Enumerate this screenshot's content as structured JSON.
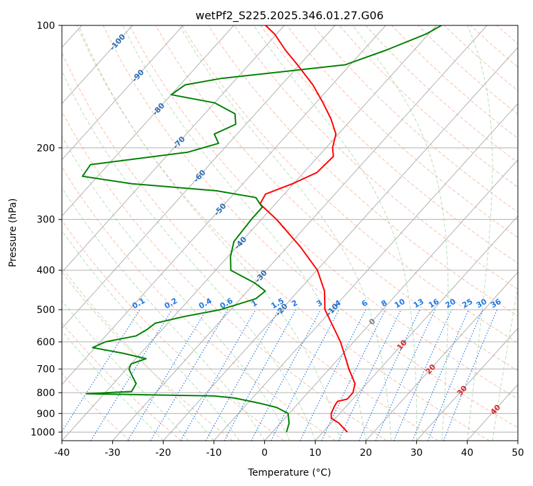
{
  "chart_data": {
    "type": "line",
    "chart_kind": "skew-T log-p diagram",
    "title": "wetPf2_S225.2025.346.01.27.G06",
    "xlabel": "Temperature (°C)",
    "ylabel": "Pressure (hPa)",
    "xlim": [
      -40,
      50
    ],
    "ylim": [
      1050,
      100
    ],
    "y_scale": "log",
    "x_ticks": [
      "-40",
      "-30",
      "-20",
      "-10",
      "0",
      "10",
      "20",
      "30",
      "40",
      "50"
    ],
    "y_ticks": [
      "100",
      "200",
      "300",
      "400",
      "500",
      "600",
      "700",
      "800",
      "900",
      "1000"
    ],
    "grid": "horizontal isobars and skewed isotherms",
    "colors": {
      "temperature": "#ff0000",
      "dewpoint": "#008000",
      "isotherm": "#b0b0b0",
      "dry_adiabat": "#f4a582",
      "moist_adiabat": "#a6d6a6",
      "mixing_ratio": "#1f77e4",
      "isotherm_label": "#2a6db5",
      "zero_label": "#808080",
      "warm_label": "#d62728",
      "lcl_curve": "#d9c3a5"
    },
    "series": [
      {
        "variable": "temperature",
        "points": [
          {
            "p": 1000,
            "t": 14.8
          },
          {
            "p": 950,
            "t": 11.5
          },
          {
            "p": 925,
            "t": 9.2
          },
          {
            "p": 900,
            "t": 8.3
          },
          {
            "p": 860,
            "t": 7.6
          },
          {
            "p": 840,
            "t": 7.4
          },
          {
            "p": 830,
            "t": 8.9
          },
          {
            "p": 800,
            "t": 8.9
          },
          {
            "p": 760,
            "t": 7.7
          },
          {
            "p": 700,
            "t": 3.9
          },
          {
            "p": 650,
            "t": 0.8
          },
          {
            "p": 600,
            "t": -2.6
          },
          {
            "p": 550,
            "t": -6.8
          },
          {
            "p": 500,
            "t": -11.4
          },
          {
            "p": 450,
            "t": -14.8
          },
          {
            "p": 400,
            "t": -19.9
          },
          {
            "p": 350,
            "t": -27.5
          },
          {
            "p": 300,
            "t": -37.0
          },
          {
            "p": 275,
            "t": -43.0
          },
          {
            "p": 260,
            "t": -43.7
          },
          {
            "p": 245,
            "t": -40.2
          },
          {
            "p": 230,
            "t": -37.4
          },
          {
            "p": 210,
            "t": -37.0
          },
          {
            "p": 200,
            "t": -38.7
          },
          {
            "p": 185,
            "t": -40.5
          },
          {
            "p": 170,
            "t": -44.1
          },
          {
            "p": 155,
            "t": -48.6
          },
          {
            "p": 140,
            "t": -53.8
          },
          {
            "p": 125,
            "t": -60.4
          },
          {
            "p": 115,
            "t": -65.4
          },
          {
            "p": 105,
            "t": -70.4
          },
          {
            "p": 100,
            "t": -73.7
          }
        ]
      },
      {
        "variable": "dewpoint",
        "points": [
          {
            "p": 1000,
            "t": 2.8
          },
          {
            "p": 950,
            "t": 1.7
          },
          {
            "p": 900,
            "t": -0.2
          },
          {
            "p": 870,
            "t": -3.5
          },
          {
            "p": 850,
            "t": -7.5
          },
          {
            "p": 825,
            "t": -13.5
          },
          {
            "p": 815,
            "t": -18.0
          },
          {
            "p": 805,
            "t": -43.5
          },
          {
            "p": 795,
            "t": -35.0
          },
          {
            "p": 760,
            "t": -35.5
          },
          {
            "p": 730,
            "t": -37.5
          },
          {
            "p": 700,
            "t": -39.5
          },
          {
            "p": 680,
            "t": -40.0
          },
          {
            "p": 660,
            "t": -38.0
          },
          {
            "p": 640,
            "t": -43.5
          },
          {
            "p": 620,
            "t": -50.5
          },
          {
            "p": 600,
            "t": -49.0
          },
          {
            "p": 580,
            "t": -44.0
          },
          {
            "p": 560,
            "t": -43.0
          },
          {
            "p": 540,
            "t": -42.5
          },
          {
            "p": 520,
            "t": -38.0
          },
          {
            "p": 500,
            "t": -32.0
          },
          {
            "p": 470,
            "t": -27.0
          },
          {
            "p": 450,
            "t": -26.5
          },
          {
            "p": 430,
            "t": -30.0
          },
          {
            "p": 400,
            "t": -37.0
          },
          {
            "p": 370,
            "t": -39.5
          },
          {
            "p": 340,
            "t": -41.5
          },
          {
            "p": 300,
            "t": -42.0
          },
          {
            "p": 280,
            "t": -42.0
          },
          {
            "p": 265,
            "t": -45.0
          },
          {
            "p": 255,
            "t": -54.0
          },
          {
            "p": 245,
            "t": -72.0
          },
          {
            "p": 235,
            "t": -83.0
          },
          {
            "p": 220,
            "t": -83.5
          },
          {
            "p": 205,
            "t": -66.5
          },
          {
            "p": 195,
            "t": -62.0
          },
          {
            "p": 185,
            "t": -64.5
          },
          {
            "p": 175,
            "t": -62.0
          },
          {
            "p": 165,
            "t": -64.0
          },
          {
            "p": 155,
            "t": -70.0
          },
          {
            "p": 148,
            "t": -80.0
          },
          {
            "p": 140,
            "t": -79.0
          },
          {
            "p": 135,
            "t": -73.0
          },
          {
            "p": 125,
            "t": -51.0
          },
          {
            "p": 115,
            "t": -45.5
          },
          {
            "p": 105,
            "t": -40.5
          },
          {
            "p": 100,
            "t": -39.0
          }
        ]
      }
    ],
    "isotherm_labels": [
      {
        "text": "-100",
        "t": -100
      },
      {
        "text": "-90",
        "t": -90
      },
      {
        "text": "-80",
        "t": -80
      },
      {
        "text": "-70",
        "t": -70
      },
      {
        "text": "-60",
        "t": -60
      },
      {
        "text": "-50",
        "t": -50
      },
      {
        "text": "-40",
        "t": -40
      },
      {
        "text": "-30",
        "t": -30
      },
      {
        "text": "-20",
        "t": -20
      },
      {
        "text": "-10",
        "t": -10
      },
      {
        "text": "0",
        "t": 0
      },
      {
        "text": "10",
        "t": 10
      },
      {
        "text": "20",
        "t": 20
      },
      {
        "text": "30",
        "t": 30
      },
      {
        "text": "40",
        "t": 40
      }
    ],
    "mixing_ratio_labels": [
      "0.1",
      "0.2",
      "0.4",
      "0.6",
      "1",
      "1.5",
      "2",
      "3",
      "4",
      "6",
      "8",
      "10",
      "13",
      "16",
      "20",
      "25",
      "30",
      "36"
    ],
    "mixing_ratio_values": [
      0.1,
      0.2,
      0.4,
      0.6,
      1,
      1.5,
      2,
      3,
      4,
      6,
      8,
      10,
      13,
      16,
      20,
      25,
      30,
      36
    ]
  }
}
